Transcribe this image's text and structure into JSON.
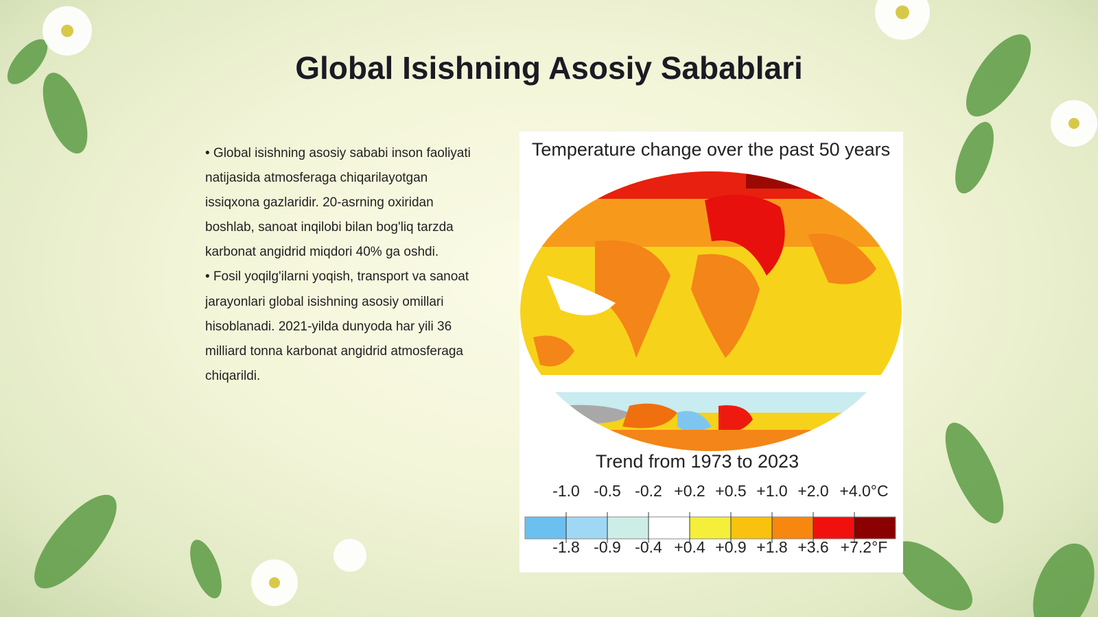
{
  "slide": {
    "title": "Global Isishning Asosiy Sabablari",
    "bullets": [
      "• Global isishning asosiy sababi inson faoliyati natijasida atmosferaga chiqarilayotgan issiqxona gazlaridir. 20-asrning oxiridan boshlab, sanoat inqilobi bilan bog'liq tarzda karbonat angidrid miqdori 40% ga oshdi.",
      "• Fosil yoqilg'ilarni yoqish, transport va sanoat jarayonlari global isishning asosiy omillari hisoblanadi. 2021-yilda dunyoda har yili 36 milliard tonna karbonat angidrid atmosferaga chiqarildi."
    ],
    "figure": {
      "title": "Temperature change over the past 50 years",
      "subtitle": "Trend from 1973 to 2023",
      "legend_celsius": [
        "-1.0",
        "-0.5",
        "-0.2",
        "+0.2",
        "+0.5",
        "+1.0",
        "+2.0",
        "+4.0°C"
      ],
      "legend_fahrenheit": [
        "-1.8",
        "-0.9",
        "-0.4",
        "+0.4",
        "+0.9",
        "+1.8",
        "+3.6",
        "+7.2°F"
      ]
    }
  }
}
